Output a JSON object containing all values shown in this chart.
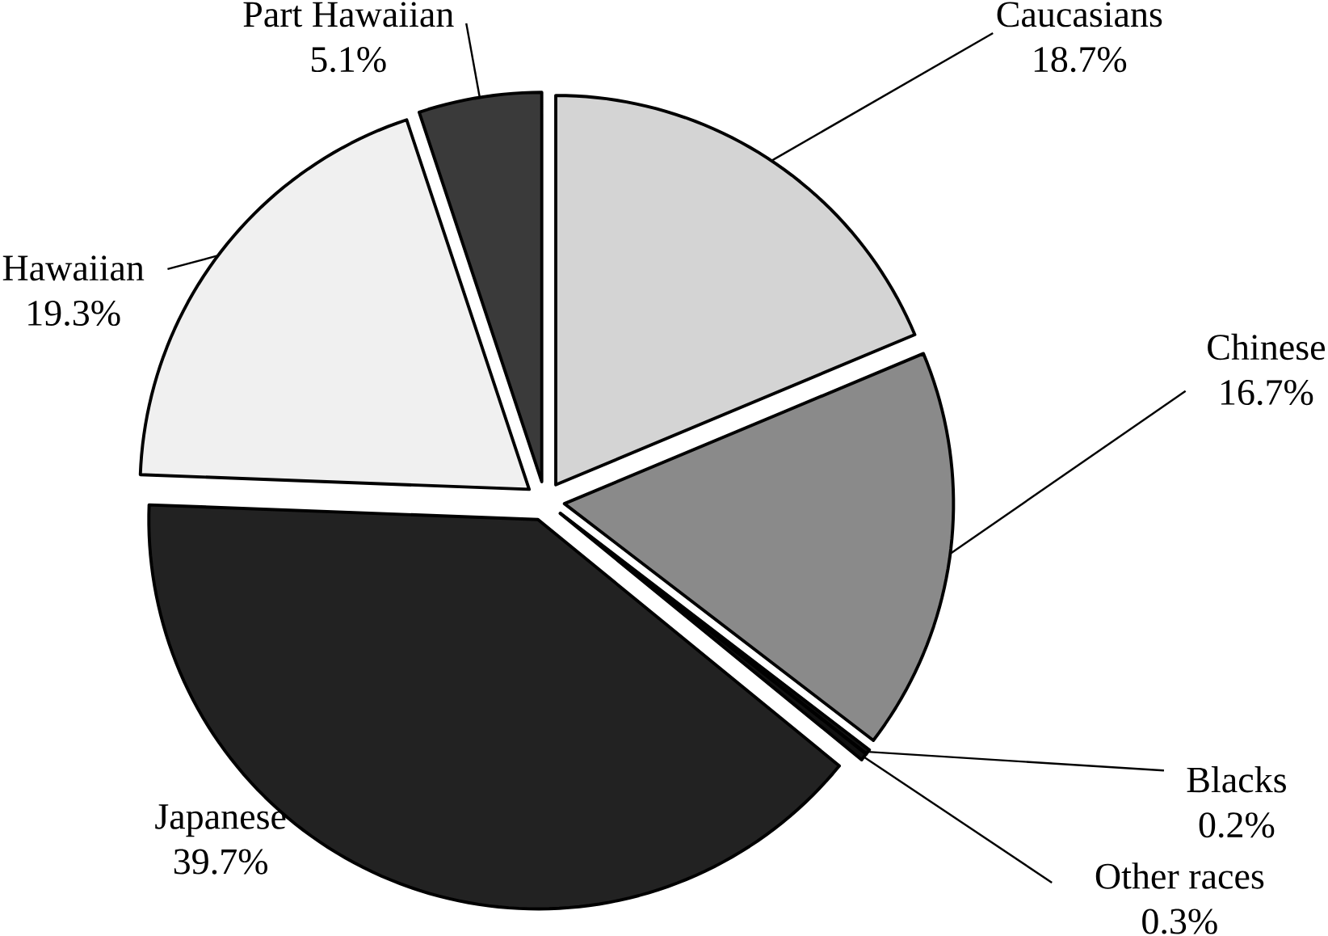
{
  "chart_data": {
    "type": "pie",
    "categories": [
      "Caucasians",
      "Chinese",
      "Blacks",
      "Other races",
      "Japanese",
      "Hawaiian",
      "Part Hawaiian"
    ],
    "values": [
      18.7,
      16.7,
      0.2,
      0.3,
      39.7,
      19.3,
      5.1
    ],
    "value_labels": [
      "18.7%",
      "16.7%",
      "0.2%",
      "0.3%",
      "39.7%",
      "19.3%",
      "5.1%"
    ],
    "colors": [
      "#d4d4d4",
      "#8a8a8a",
      "#111111",
      "#111111",
      "#222222",
      "#f0f0f0",
      "#3a3a3a"
    ]
  }
}
